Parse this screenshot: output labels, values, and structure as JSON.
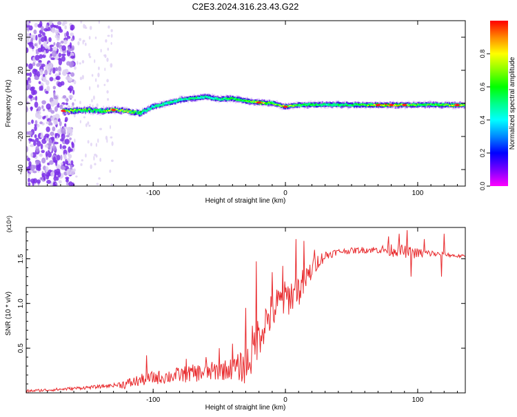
{
  "figure_title": "C2E3.2024.316.23.43.G22",
  "chart_data": [
    {
      "type": "heatmap",
      "title": "",
      "xlabel": "Height of straight line (km)",
      "ylabel": "Frequency (Hz)",
      "xlim": [
        -196,
        136
      ],
      "ylim": [
        -50,
        50
      ],
      "x_ticks": [
        -100,
        0,
        100
      ],
      "y_ticks": [
        -40,
        -20,
        0,
        20,
        40
      ],
      "grid": false,
      "colorbar": {
        "label": "Normalized spectral amplitude",
        "range": [
          0.0,
          1.0
        ],
        "ticks": [
          "0.0",
          "0.2",
          "0.4",
          "0.6",
          "0.8"
        ],
        "colors": [
          "#ff00ff",
          "#7700ff",
          "#0000ff",
          "#0088ff",
          "#00ffff",
          "#00ff88",
          "#00ff00",
          "#88ff00",
          "#ffff00",
          "#ff8800",
          "#ff0000"
        ]
      },
      "noise_region_x": [
        -196,
        -160
      ],
      "ridge": [
        {
          "x": -168,
          "y": -4.5,
          "amp": 0.8
        },
        {
          "x": -160,
          "y": -4.5,
          "amp": 0.7
        },
        {
          "x": -150,
          "y": -4.0,
          "amp": 0.6
        },
        {
          "x": -140,
          "y": -4.5,
          "amp": 0.55
        },
        {
          "x": -130,
          "y": -4.0,
          "amp": 0.8
        },
        {
          "x": -120,
          "y": -4.5,
          "amp": 0.7
        },
        {
          "x": -110,
          "y": -6.0,
          "amp": 0.5
        },
        {
          "x": -100,
          "y": -2.0,
          "amp": 0.45
        },
        {
          "x": -90,
          "y": 0.0,
          "amp": 0.5
        },
        {
          "x": -80,
          "y": 2.0,
          "amp": 0.45
        },
        {
          "x": -70,
          "y": 3.0,
          "amp": 0.5
        },
        {
          "x": -60,
          "y": 4.0,
          "amp": 0.45
        },
        {
          "x": -50,
          "y": 2.5,
          "amp": 0.5
        },
        {
          "x": -40,
          "y": 3.0,
          "amp": 0.55
        },
        {
          "x": -30,
          "y": 1.5,
          "amp": 0.6
        },
        {
          "x": -20,
          "y": 0.5,
          "amp": 0.85
        },
        {
          "x": -10,
          "y": 0.0,
          "amp": 0.6
        },
        {
          "x": 0,
          "y": -2.0,
          "amp": 0.8
        },
        {
          "x": 10,
          "y": -1.0,
          "amp": 0.6
        },
        {
          "x": 20,
          "y": -0.8,
          "amp": 0.55
        },
        {
          "x": 30,
          "y": -0.8,
          "amp": 0.5
        },
        {
          "x": 40,
          "y": -0.8,
          "amp": 0.55
        },
        {
          "x": 50,
          "y": -0.9,
          "amp": 0.55
        },
        {
          "x": 60,
          "y": -0.9,
          "amp": 0.6
        },
        {
          "x": 70,
          "y": -1.0,
          "amp": 0.9
        },
        {
          "x": 80,
          "y": -1.0,
          "amp": 0.9
        },
        {
          "x": 90,
          "y": -1.0,
          "amp": 0.75
        },
        {
          "x": 100,
          "y": -0.8,
          "amp": 0.6
        },
        {
          "x": 110,
          "y": -0.8,
          "amp": 0.6
        },
        {
          "x": 120,
          "y": -1.0,
          "amp": 0.6
        },
        {
          "x": 130,
          "y": -1.0,
          "amp": 0.9
        },
        {
          "x": 136,
          "y": -1.0,
          "amp": 0.6
        }
      ]
    },
    {
      "type": "line",
      "title": "",
      "xlabel": "Height of straight line (km)",
      "ylabel": "SNR (10 * v/v)",
      "y_multiplier": "(x10⁴)",
      "xlim": [
        -196,
        136
      ],
      "ylim": [
        0,
        1.85
      ],
      "x_ticks": [
        -100,
        0,
        100
      ],
      "y_ticks": [
        0.5,
        1.0,
        1.5
      ],
      "y_tick_labels": [
        "0.5",
        "1.0",
        "1.5"
      ],
      "grid": false,
      "series": [
        {
          "name": "",
          "color": "#e8282b",
          "x": [
            -196,
            -170,
            -160,
            -140,
            -120,
            -110,
            -100,
            -90,
            -80,
            -70,
            -60,
            -50,
            -40,
            -30,
            -25,
            -20,
            -15,
            -10,
            -5,
            0,
            5,
            10,
            15,
            20,
            25,
            30,
            35,
            40,
            50,
            60,
            70,
            80,
            85,
            90,
            95,
            100,
            110,
            115,
            120,
            130,
            136
          ],
          "y": [
            0.02,
            0.04,
            0.05,
            0.07,
            0.1,
            0.14,
            0.17,
            0.18,
            0.2,
            0.22,
            0.23,
            0.25,
            0.27,
            0.3,
            0.45,
            0.65,
            0.8,
            0.9,
            1.0,
            1.05,
            1.1,
            1.15,
            1.25,
            1.38,
            1.48,
            1.53,
            1.56,
            1.58,
            1.59,
            1.6,
            1.6,
            1.6,
            1.6,
            1.58,
            1.57,
            1.56,
            1.56,
            1.55,
            1.55,
            1.53,
            1.53
          ],
          "spikes": [
            {
              "x": -105,
              "y": 0.42
            },
            {
              "x": -75,
              "y": 0.38
            },
            {
              "x": -60,
              "y": 0.4
            },
            {
              "x": -50,
              "y": 0.5
            },
            {
              "x": -40,
              "y": 0.55
            },
            {
              "x": -30,
              "y": 0.95
            },
            {
              "x": -25,
              "y": 0.75
            },
            {
              "x": -22,
              "y": 1.47
            },
            {
              "x": -10,
              "y": 1.35
            },
            {
              "x": -2,
              "y": 1.42
            },
            {
              "x": 8,
              "y": 1.72
            },
            {
              "x": 14,
              "y": 1.7
            },
            {
              "x": 22,
              "y": 1.6
            },
            {
              "x": 78,
              "y": 1.75
            },
            {
              "x": 86,
              "y": 1.78
            },
            {
              "x": 92,
              "y": 1.82
            },
            {
              "x": 95,
              "y": 1.3
            },
            {
              "x": 105,
              "y": 1.72
            },
            {
              "x": 118,
              "y": 1.3
            },
            {
              "x": 120,
              "y": 1.78
            }
          ],
          "noise_amplitude": [
            {
              "x": -196,
              "a": 0.015
            },
            {
              "x": -130,
              "a": 0.02
            },
            {
              "x": -120,
              "a": 0.06
            },
            {
              "x": -80,
              "a": 0.09
            },
            {
              "x": -40,
              "a": 0.12
            },
            {
              "x": -25,
              "a": 0.25
            },
            {
              "x": -10,
              "a": 0.22
            },
            {
              "x": 10,
              "a": 0.2
            },
            {
              "x": 25,
              "a": 0.08
            },
            {
              "x": 40,
              "a": 0.03
            },
            {
              "x": 70,
              "a": 0.04
            },
            {
              "x": 80,
              "a": 0.08
            },
            {
              "x": 100,
              "a": 0.06
            },
            {
              "x": 115,
              "a": 0.03
            },
            {
              "x": 136,
              "a": 0.015
            }
          ]
        }
      ]
    }
  ]
}
